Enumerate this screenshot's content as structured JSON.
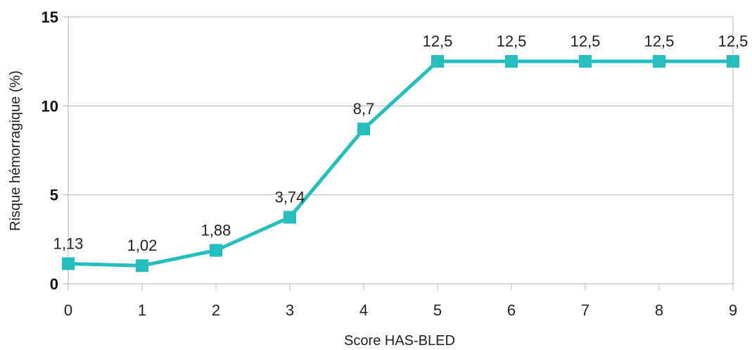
{
  "chart_data": {
    "type": "line",
    "xlabel": "Score HAS-BLED",
    "ylabel": "Risque hémorragique (%)",
    "ylim": [
      0,
      15
    ],
    "yticks": [
      0,
      5,
      10,
      15
    ],
    "grid": true,
    "x": [
      0,
      1,
      2,
      3,
      4,
      5,
      6,
      7,
      8,
      9
    ],
    "x_labels": [
      "0",
      "1",
      "2",
      "3",
      "4",
      "5",
      "6",
      "7",
      "8",
      "9"
    ],
    "series": [
      {
        "values": [
          1.13,
          1.02,
          1.88,
          3.74,
          8.7,
          12.5,
          12.5,
          12.5,
          12.5,
          12.5
        ],
        "data_labels": [
          "1,13",
          "1,02",
          "1,88",
          "3,74",
          "8,7",
          "12,5",
          "12,5",
          "12,5",
          "12,5",
          "12,5"
        ],
        "color": "#26bdbd",
        "marker": "square"
      }
    ]
  }
}
